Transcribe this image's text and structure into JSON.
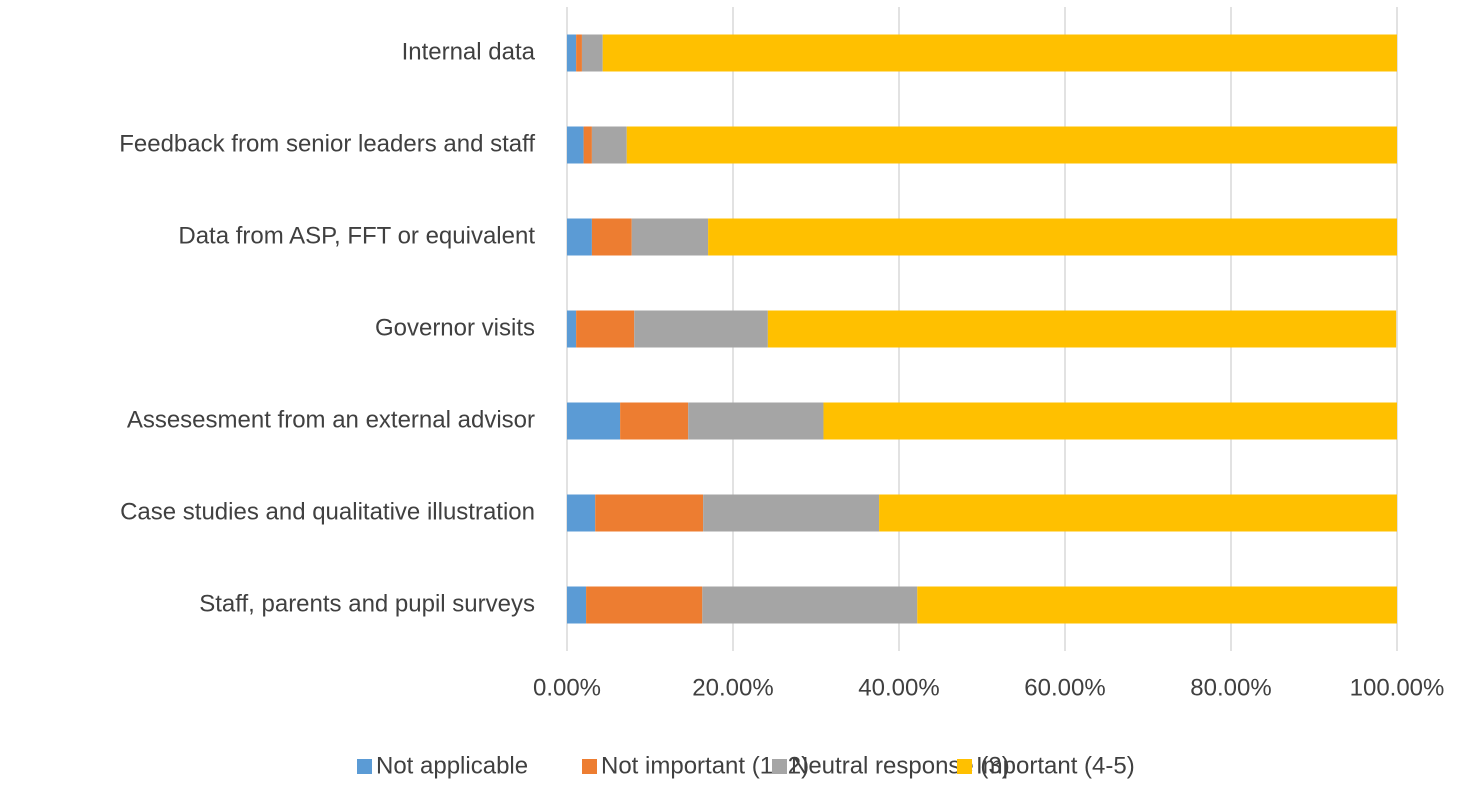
{
  "chart_data": {
    "type": "stacked_barh",
    "categories": [
      "Internal data",
      "Feedback from senior leaders and staff",
      "Data from ASP, FFT or equivalent",
      "Governor visits",
      "Assesesment from an external advisor",
      "Case studies and qualitative illustration",
      "Staff, parents and pupil surveys"
    ],
    "series": [
      {
        "name": "Not applicable",
        "color": "#5b9bd5",
        "values": [
          1.1,
          2.0,
          3.0,
          1.1,
          6.4,
          3.4,
          2.3
        ]
      },
      {
        "name": "Not important (1 -2)",
        "color": "#ed7d31",
        "values": [
          0.7,
          1.0,
          4.8,
          7.0,
          8.2,
          13.0,
          14.0
        ]
      },
      {
        "name": "Neutral response (3)",
        "color": "#a5a5a5",
        "values": [
          2.5,
          4.2,
          9.2,
          16.1,
          16.3,
          21.2,
          25.9
        ]
      },
      {
        "name": "Important (4-5)",
        "color": "#ffc000",
        "values": [
          95.7,
          92.8,
          83.0,
          75.7,
          69.1,
          62.4,
          57.8
        ]
      }
    ],
    "xlim": [
      0,
      100
    ],
    "xticks": [
      {
        "value": 0,
        "label": "0.00%"
      },
      {
        "value": 20,
        "label": "20.00%"
      },
      {
        "value": 40,
        "label": "40.00%"
      },
      {
        "value": 60,
        "label": "60.00%"
      },
      {
        "value": 80,
        "label": "80.00%"
      },
      {
        "value": 100,
        "label": "100.00%"
      }
    ],
    "grid": true,
    "legend": "bottom"
  }
}
